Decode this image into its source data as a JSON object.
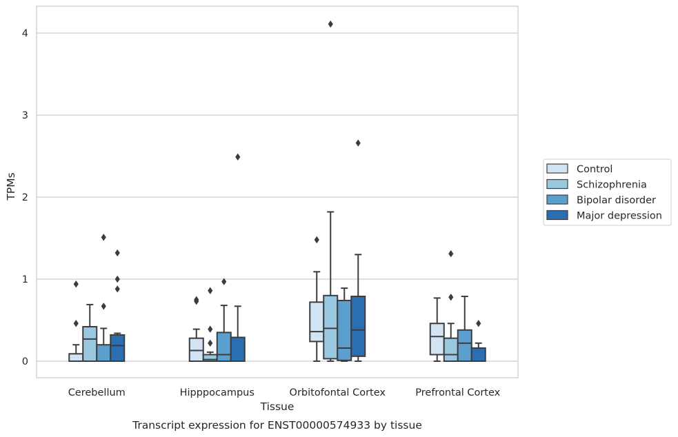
{
  "chart_data": {
    "type": "box",
    "title": "Transcript expression for ENST00000574933 by tissue",
    "xlabel": "Tissue",
    "ylabel": "TPMs",
    "ylim": [
      -0.2,
      4.3
    ],
    "yticks": [
      0,
      1,
      2,
      3,
      4
    ],
    "grid": true,
    "legend_position": "right",
    "categories": [
      "Cerebellum",
      "Hipppocampus",
      "Orbitofontal Cortex",
      "Prefrontal Cortex"
    ],
    "series": [
      {
        "name": "Control",
        "color": "#d2e3f3",
        "boxes": [
          {
            "whisker_low": 0,
            "q1": 0,
            "median": 0,
            "q3": 0.09,
            "whisker_high": 0.2,
            "outliers": [
              0.46,
              0.94
            ]
          },
          {
            "whisker_low": 0,
            "q1": 0,
            "median": 0.13,
            "q3": 0.28,
            "whisker_high": 0.39,
            "outliers": [
              0.73,
              0.75
            ]
          },
          {
            "whisker_low": 0,
            "q1": 0.24,
            "median": 0.36,
            "q3": 0.72,
            "whisker_high": 1.09,
            "outliers": [
              1.48
            ]
          },
          {
            "whisker_low": 0,
            "q1": 0.08,
            "median": 0.3,
            "q3": 0.46,
            "whisker_high": 0.77,
            "outliers": []
          }
        ]
      },
      {
        "name": "Schizophrenia",
        "color": "#9ac8e0",
        "boxes": [
          {
            "whisker_low": 0,
            "q1": 0,
            "median": 0.27,
            "q3": 0.42,
            "whisker_high": 0.69,
            "outliers": []
          },
          {
            "whisker_low": 0,
            "q1": 0,
            "median": 0.02,
            "q3": 0.08,
            "whisker_high": 0.11,
            "outliers": [
              0.22,
              0.39,
              0.86
            ]
          },
          {
            "whisker_low": 0,
            "q1": 0.03,
            "median": 0.4,
            "q3": 0.8,
            "whisker_high": 1.82,
            "outliers": [
              4.11
            ]
          },
          {
            "whisker_low": 0,
            "q1": 0,
            "median": 0.08,
            "q3": 0.28,
            "whisker_high": 0.46,
            "outliers": [
              0.78,
              1.31
            ]
          }
        ]
      },
      {
        "name": "Bipolar disorder",
        "color": "#5b9fcf",
        "boxes": [
          {
            "whisker_low": 0,
            "q1": 0,
            "median": 0,
            "q3": 0.2,
            "whisker_high": 0.4,
            "outliers": [
              0.67,
              1.51
            ]
          },
          {
            "whisker_low": 0,
            "q1": 0,
            "median": 0.08,
            "q3": 0.35,
            "whisker_high": 0.68,
            "outliers": [
              0.97
            ]
          },
          {
            "whisker_low": 0,
            "q1": 0.01,
            "median": 0.16,
            "q3": 0.74,
            "whisker_high": 0.89,
            "outliers": []
          },
          {
            "whisker_low": 0,
            "q1": 0,
            "median": 0.22,
            "q3": 0.38,
            "whisker_high": 0.79,
            "outliers": []
          }
        ]
      },
      {
        "name": "Major depression",
        "color": "#2a6fb1",
        "boxes": [
          {
            "whisker_low": 0,
            "q1": 0,
            "median": 0.19,
            "q3": 0.32,
            "whisker_high": 0.34,
            "outliers": [
              0.88,
              1.0,
              1.32
            ]
          },
          {
            "whisker_low": 0,
            "q1": 0,
            "median": 0,
            "q3": 0.29,
            "whisker_high": 0.67,
            "outliers": [
              2.49
            ]
          },
          {
            "whisker_low": 0,
            "q1": 0.06,
            "median": 0.38,
            "q3": 0.79,
            "whisker_high": 1.3,
            "outliers": [
              2.66
            ]
          },
          {
            "whisker_low": 0,
            "q1": 0,
            "median": 0,
            "q3": 0.16,
            "whisker_high": 0.22,
            "outliers": [
              0.46
            ]
          }
        ]
      }
    ]
  }
}
